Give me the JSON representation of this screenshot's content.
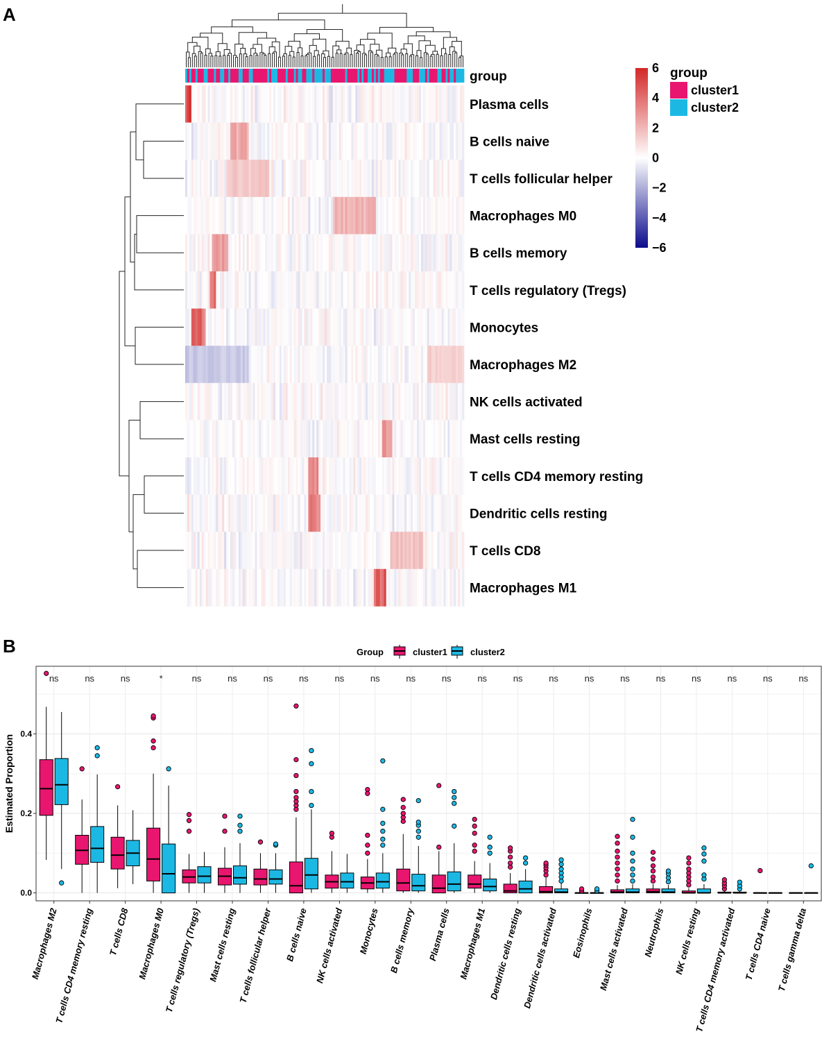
{
  "panels": {
    "a_label": "A",
    "b_label": "B"
  },
  "colors": {
    "cluster1": "#E8166F",
    "cluster2": "#1CB8E4",
    "heat_low": "#0B0C8C",
    "heat_mid": "#FFFFFF",
    "heat_high": "#D32828"
  },
  "chart_data": [
    {
      "type": "heatmap",
      "title": "",
      "group_row_label": "group",
      "rows": [
        "Plasma cells",
        "B cells naive",
        "T cells follicular helper",
        "Macrophages M0",
        "B cells memory",
        "T cells regulatory (Tregs)",
        "Monocytes",
        "Macrophages M2",
        "NK cells activated",
        "Mast cells resting",
        "T cells CD4 memory resting",
        "Dendritic cells resting",
        "T cells CD8",
        "Macrophages M1"
      ],
      "n_samples": 136,
      "color_scale": {
        "min": -6,
        "max": 6,
        "ticks": [
          6,
          4,
          2,
          0,
          -2,
          -4,
          -6
        ]
      },
      "legend": {
        "title": "group",
        "entries": [
          "cluster1",
          "cluster2"
        ]
      },
      "hot_spots": [
        {
          "row": 0,
          "from": 0,
          "to": 2,
          "value": 5.2
        },
        {
          "row": 1,
          "from": 22,
          "to": 30,
          "value": 2.4
        },
        {
          "row": 2,
          "from": 20,
          "to": 40,
          "value": 1.6
        },
        {
          "row": 3,
          "from": 72,
          "to": 92,
          "value": 2.2
        },
        {
          "row": 4,
          "from": 13,
          "to": 20,
          "value": 3.0
        },
        {
          "row": 5,
          "from": 12,
          "to": 14,
          "value": 4.0
        },
        {
          "row": 6,
          "from": 3,
          "to": 9,
          "value": 4.2
        },
        {
          "row": 7,
          "from": 0,
          "to": 30,
          "value": -1.4
        },
        {
          "row": 7,
          "from": 118,
          "to": 135,
          "value": 1.4
        },
        {
          "row": 9,
          "from": 96,
          "to": 100,
          "value": 3.0
        },
        {
          "row": 10,
          "from": 60,
          "to": 64,
          "value": 3.2
        },
        {
          "row": 11,
          "from": 60,
          "to": 65,
          "value": 3.4
        },
        {
          "row": 12,
          "from": 100,
          "to": 115,
          "value": 1.8
        },
        {
          "row": 13,
          "from": 92,
          "to": 97,
          "value": 5.0
        }
      ]
    },
    {
      "type": "box",
      "legend_title": "Group",
      "series": [
        "cluster1",
        "cluster2"
      ],
      "ylabel": "Estimated Proportion",
      "xlabel": "",
      "ylim": [
        -0.02,
        0.57
      ],
      "yticks": [
        0.0,
        0.2,
        0.4
      ],
      "ytick_labels": [
        "0.0",
        "0.2",
        "0.4"
      ],
      "categories": [
        {
          "name": "Macrophages M2",
          "sig": "ns",
          "c1": {
            "q1": 0.195,
            "med": 0.262,
            "q3": 0.335,
            "wlo": 0.083,
            "whi": 0.468,
            "out": [
              0.552
            ]
          },
          "c2": {
            "q1": 0.222,
            "med": 0.272,
            "q3": 0.338,
            "wlo": 0.06,
            "whi": 0.455,
            "out": [
              0.025
            ]
          }
        },
        {
          "name": "T cells CD4 memory resting",
          "sig": "ns",
          "c1": {
            "q1": 0.072,
            "med": 0.107,
            "q3": 0.145,
            "wlo": 0.0,
            "whi": 0.235,
            "out": [
              0.312
            ]
          },
          "c2": {
            "q1": 0.077,
            "med": 0.112,
            "q3": 0.167,
            "wlo": 0.0,
            "whi": 0.298,
            "out": [
              0.345,
              0.365
            ]
          }
        },
        {
          "name": "T cells CD8",
          "sig": "ns",
          "c1": {
            "q1": 0.06,
            "med": 0.095,
            "q3": 0.14,
            "wlo": 0.012,
            "whi": 0.22,
            "out": [
              0.267
            ]
          },
          "c2": {
            "q1": 0.068,
            "med": 0.1,
            "q3": 0.132,
            "wlo": 0.022,
            "whi": 0.208,
            "out": []
          }
        },
        {
          "name": "Macrophages M0",
          "sig": "*",
          "c1": {
            "q1": 0.03,
            "med": 0.085,
            "q3": 0.163,
            "wlo": 0.0,
            "whi": 0.3,
            "out": [
              0.365,
              0.382,
              0.44,
              0.445
            ]
          },
          "c2": {
            "q1": 0.0,
            "med": 0.048,
            "q3": 0.123,
            "wlo": 0.0,
            "whi": 0.27,
            "out": [
              0.312
            ]
          }
        },
        {
          "name": "T cells regulatory (Tregs)",
          "sig": "ns",
          "c1": {
            "q1": 0.025,
            "med": 0.04,
            "q3": 0.058,
            "wlo": 0.0,
            "whi": 0.098,
            "out": [
              0.155,
              0.182,
              0.197
            ]
          },
          "c2": {
            "q1": 0.025,
            "med": 0.042,
            "q3": 0.066,
            "wlo": 0.0,
            "whi": 0.103,
            "out": []
          }
        },
        {
          "name": "Mast cells resting",
          "sig": "ns",
          "c1": {
            "q1": 0.02,
            "med": 0.042,
            "q3": 0.062,
            "wlo": 0.0,
            "whi": 0.115,
            "out": [
              0.155,
              0.193
            ]
          },
          "c2": {
            "q1": 0.022,
            "med": 0.038,
            "q3": 0.068,
            "wlo": 0.0,
            "whi": 0.125,
            "out": [
              0.155,
              0.17,
              0.193
            ]
          }
        },
        {
          "name": "T cells follicular helper",
          "sig": "ns",
          "c1": {
            "q1": 0.02,
            "med": 0.035,
            "q3": 0.06,
            "wlo": 0.0,
            "whi": 0.1,
            "out": [
              0.128
            ]
          },
          "c2": {
            "q1": 0.022,
            "med": 0.035,
            "q3": 0.058,
            "wlo": 0.0,
            "whi": 0.1,
            "out": [
              0.12,
              0.123
            ]
          }
        },
        {
          "name": "B cells naive",
          "sig": "ns",
          "c1": {
            "q1": 0.0,
            "med": 0.018,
            "q3": 0.078,
            "wlo": 0.0,
            "whi": 0.19,
            "out": [
              0.21,
              0.22,
              0.23,
              0.24,
              0.255,
              0.295,
              0.335,
              0.47
            ]
          },
          "c2": {
            "q1": 0.01,
            "med": 0.045,
            "q3": 0.087,
            "wlo": 0.0,
            "whi": 0.21,
            "out": [
              0.22,
              0.255,
              0.325,
              0.358
            ]
          }
        },
        {
          "name": "NK cells activated",
          "sig": "ns",
          "c1": {
            "q1": 0.012,
            "med": 0.028,
            "q3": 0.045,
            "wlo": 0.0,
            "whi": 0.105,
            "out": [
              0.14,
              0.15
            ]
          },
          "c2": {
            "q1": 0.012,
            "med": 0.028,
            "q3": 0.05,
            "wlo": 0.0,
            "whi": 0.098,
            "out": []
          }
        },
        {
          "name": "Monocytes",
          "sig": "ns",
          "c1": {
            "q1": 0.01,
            "med": 0.025,
            "q3": 0.04,
            "wlo": 0.0,
            "whi": 0.085,
            "out": [
              0.1,
              0.12,
              0.145,
              0.25,
              0.26
            ]
          },
          "c2": {
            "q1": 0.012,
            "med": 0.028,
            "q3": 0.05,
            "wlo": 0.0,
            "whi": 0.1,
            "out": [
              0.12,
              0.135,
              0.155,
              0.175,
              0.21,
              0.332
            ]
          }
        },
        {
          "name": "B cells memory",
          "sig": "ns",
          "c1": {
            "q1": 0.005,
            "med": 0.025,
            "q3": 0.06,
            "wlo": 0.0,
            "whi": 0.148,
            "out": [
              0.18,
              0.19,
              0.2,
              0.215,
              0.235
            ]
          },
          "c2": {
            "q1": 0.005,
            "med": 0.018,
            "q3": 0.047,
            "wlo": 0.0,
            "whi": 0.118,
            "out": [
              0.14,
              0.155,
              0.17,
              0.178,
              0.232
            ]
          }
        },
        {
          "name": "Plasma cells",
          "sig": "ns",
          "c1": {
            "q1": 0.0,
            "med": 0.012,
            "q3": 0.045,
            "wlo": 0.0,
            "whi": 0.105,
            "out": [
              0.115,
              0.27
            ]
          },
          "c2": {
            "q1": 0.005,
            "med": 0.022,
            "q3": 0.053,
            "wlo": 0.0,
            "whi": 0.125,
            "out": [
              0.168,
              0.225,
              0.24,
              0.255
            ]
          }
        },
        {
          "name": "Macrophages M1",
          "sig": "ns",
          "c1": {
            "q1": 0.012,
            "med": 0.022,
            "q3": 0.045,
            "wlo": 0.0,
            "whi": 0.08,
            "out": [
              0.105,
              0.12,
              0.15,
              0.168,
              0.185
            ]
          },
          "c2": {
            "q1": 0.005,
            "med": 0.016,
            "q3": 0.035,
            "wlo": 0.0,
            "whi": 0.075,
            "out": [
              0.1,
              0.115,
              0.14
            ]
          }
        },
        {
          "name": "Dendritic cells resting",
          "sig": "ns",
          "c1": {
            "q1": 0.0,
            "med": 0.005,
            "q3": 0.022,
            "wlo": 0.0,
            "whi": 0.05,
            "out": [
              0.065,
              0.075,
              0.09,
              0.105,
              0.113
            ]
          },
          "c2": {
            "q1": 0.0,
            "med": 0.01,
            "q3": 0.03,
            "wlo": 0.0,
            "whi": 0.06,
            "out": [
              0.075,
              0.088
            ]
          }
        },
        {
          "name": "Dendritic cells activated",
          "sig": "ns",
          "c1": {
            "q1": 0.0,
            "med": 0.003,
            "q3": 0.016,
            "wlo": 0.0,
            "whi": 0.038,
            "out": [
              0.045,
              0.055,
              0.063,
              0.07,
              0.075
            ]
          },
          "c2": {
            "q1": 0.0,
            "med": 0.002,
            "q3": 0.01,
            "wlo": 0.0,
            "whi": 0.025,
            "out": [
              0.03,
              0.04,
              0.05,
              0.06,
              0.072,
              0.083
            ]
          }
        },
        {
          "name": "Eosinophils",
          "sig": "ns",
          "c1": {
            "q1": 0.0,
            "med": 0.0,
            "q3": 0.0,
            "wlo": 0.0,
            "whi": 0.0,
            "out": [
              0.005,
              0.01
            ]
          },
          "c2": {
            "q1": 0.0,
            "med": 0.0,
            "q3": 0.0,
            "wlo": 0.0,
            "whi": 0.0,
            "out": [
              0.005,
              0.01
            ]
          }
        },
        {
          "name": "Mast cells activated",
          "sig": "ns",
          "c1": {
            "q1": 0.0,
            "med": 0.002,
            "q3": 0.008,
            "wlo": 0.0,
            "whi": 0.02,
            "out": [
              0.03,
              0.045,
              0.06,
              0.075,
              0.09,
              0.105,
              0.125,
              0.142
            ]
          },
          "c2": {
            "q1": 0.0,
            "med": 0.002,
            "q3": 0.01,
            "wlo": 0.0,
            "whi": 0.022,
            "out": [
              0.03,
              0.045,
              0.06,
              0.08,
              0.1,
              0.14,
              0.185
            ]
          }
        },
        {
          "name": "Neutrophils",
          "sig": "ns",
          "c1": {
            "q1": 0.0,
            "med": 0.003,
            "q3": 0.01,
            "wlo": 0.0,
            "whi": 0.022,
            "out": [
              0.03,
              0.04,
              0.055,
              0.068,
              0.085,
              0.102
            ]
          },
          "c2": {
            "q1": 0.0,
            "med": 0.002,
            "q3": 0.01,
            "wlo": 0.0,
            "whi": 0.02,
            "out": [
              0.028,
              0.038,
              0.048,
              0.055
            ]
          }
        },
        {
          "name": "NK cells resting",
          "sig": "ns",
          "c1": {
            "q1": 0.0,
            "med": 0.0,
            "q3": 0.005,
            "wlo": 0.0,
            "whi": 0.012,
            "out": [
              0.02,
              0.03,
              0.04,
              0.05,
              0.06,
              0.075,
              0.088
            ]
          },
          "c2": {
            "q1": 0.0,
            "med": 0.0,
            "q3": 0.01,
            "wlo": 0.0,
            "whi": 0.022,
            "out": [
              0.035,
              0.045,
              0.08,
              0.098,
              0.113
            ]
          }
        },
        {
          "name": "T cells CD4 memory activated",
          "sig": "ns",
          "c1": {
            "q1": 0.0,
            "med": 0.0,
            "q3": 0.002,
            "wlo": 0.0,
            "whi": 0.005,
            "out": [
              0.01,
              0.018,
              0.025,
              0.033
            ]
          },
          "c2": {
            "q1": 0.0,
            "med": 0.0,
            "q3": 0.002,
            "wlo": 0.0,
            "whi": 0.005,
            "out": [
              0.01,
              0.018,
              0.027
            ]
          }
        },
        {
          "name": "T cells CD4 naive",
          "sig": "ns",
          "c1": {
            "q1": 0.0,
            "med": 0.0,
            "q3": 0.0,
            "wlo": 0.0,
            "whi": 0.0,
            "out": [
              0.056
            ]
          },
          "c2": {
            "q1": 0.0,
            "med": 0.0,
            "q3": 0.0,
            "wlo": 0.0,
            "whi": 0.0,
            "out": []
          }
        },
        {
          "name": "T cells gamma delta",
          "sig": "ns",
          "c1": {
            "q1": 0.0,
            "med": 0.0,
            "q3": 0.0,
            "wlo": 0.0,
            "whi": 0.0,
            "out": []
          },
          "c2": {
            "q1": 0.0,
            "med": 0.0,
            "q3": 0.0,
            "wlo": 0.0,
            "whi": 0.0,
            "out": [
              0.068
            ]
          }
        }
      ]
    }
  ]
}
